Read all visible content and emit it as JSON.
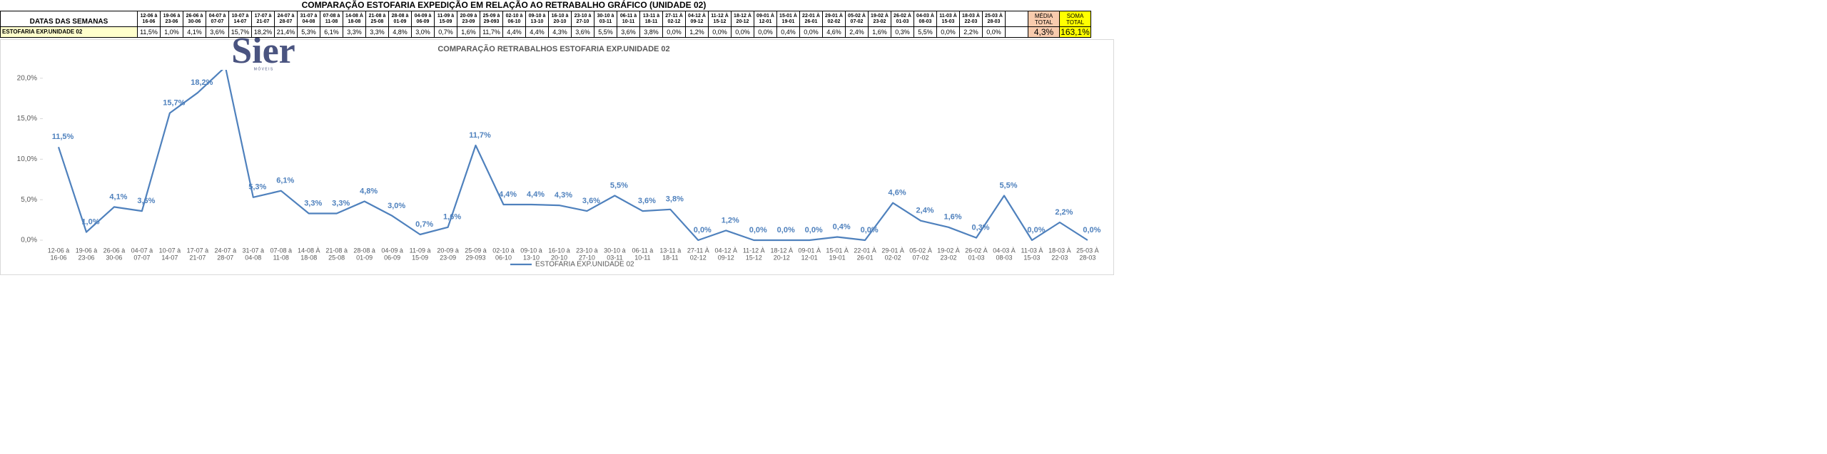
{
  "table": {
    "title": "COMPARAÇÃO ESTOFARIA EXPEDIÇÃO  EM RELAÇÃO AO RETRABALHO GRÁFICO (UNIDADE 02)",
    "row_header": "DATAS DAS SEMANAS",
    "summary": [
      {
        "label": "MÉDIA TOTAL",
        "value": "4,3%",
        "color": "#f8cbad"
      },
      {
        "label": "SOMA TOTAL",
        "value": "163,1%",
        "color": "#ffff00"
      }
    ]
  },
  "logo": {
    "text": "Sier",
    "subtitle": "M Ó V E I S"
  },
  "chart_data": {
    "type": "line",
    "title": "COMPARAÇÃO RETRABALHOS  ESTOFARIA EXP.UNIDADE 02",
    "categories": [
      [
        "12-06 à",
        "16-06"
      ],
      [
        "19-06 à",
        "23-06"
      ],
      [
        "26-06 à",
        "30-06"
      ],
      [
        "04-07 à",
        "07-07"
      ],
      [
        "10-07 à",
        "14-07"
      ],
      [
        "17-07 à",
        "21-07"
      ],
      [
        "24-07 à",
        "28-07"
      ],
      [
        "31-07 à",
        "04-08"
      ],
      [
        "07-08 à",
        "11-08"
      ],
      [
        "14-08 À",
        "18-08"
      ],
      [
        "21-08 à",
        "25-08"
      ],
      [
        "28-08 à",
        "01-09"
      ],
      [
        "04-09 à",
        "06-09"
      ],
      [
        "11-09 à",
        "15-09"
      ],
      [
        "20-09 à",
        "23-09"
      ],
      [
        "25-09 à",
        "29-093"
      ],
      [
        "02-10 à",
        "06-10"
      ],
      [
        "09-10 à",
        "13-10"
      ],
      [
        "16-10 à",
        "20-10"
      ],
      [
        "23-10 à",
        "27-10"
      ],
      [
        "30-10 à",
        "03-11"
      ],
      [
        "06-11 à",
        "10-11"
      ],
      [
        "13-11 à",
        "18-11"
      ],
      [
        "27-11 À",
        "02-12"
      ],
      [
        "04-12 À",
        "09-12"
      ],
      [
        "11-12 À",
        "15-12"
      ],
      [
        "18-12 À",
        "20-12"
      ],
      [
        "09-01 À",
        "12-01"
      ],
      [
        "15-01 À",
        "19-01"
      ],
      [
        "22-01 À",
        "26-01"
      ],
      [
        "29-01 À",
        "02-02"
      ],
      [
        "05-02 À",
        "07-02"
      ],
      [
        "19-02 À",
        "23-02"
      ],
      [
        "26-02 À",
        "01-03"
      ],
      [
        "04-03 À",
        "08-03"
      ],
      [
        "11-03 À",
        "15-03"
      ],
      [
        "18-03 À",
        "22-03"
      ],
      [
        "25-03 À",
        "28-03"
      ]
    ],
    "series": [
      {
        "name": "ESTOFARIA EXP.UNIDADE 02",
        "color": "#4f81bd",
        "values": [
          11.5,
          1.0,
          4.1,
          3.6,
          15.7,
          18.2,
          21.4,
          5.3,
          6.1,
          3.3,
          3.3,
          4.8,
          3.0,
          0.7,
          1.6,
          11.7,
          4.4,
          4.4,
          4.3,
          3.6,
          5.5,
          3.6,
          3.8,
          0.0,
          1.2,
          0.0,
          0.0,
          0.0,
          0.4,
          0.0,
          4.6,
          2.4,
          1.6,
          0.3,
          5.5,
          0.0,
          2.2,
          0.0
        ],
        "value_labels": [
          "11,5%",
          "1,0%",
          "4,1%",
          "3,6%",
          "15,7%",
          "18,2%",
          "21,4%",
          "5,3%",
          "6,1%",
          "3,3%",
          "3,3%",
          "4,8%",
          "3,0%",
          "0,7%",
          "1,6%",
          "11,7%",
          "4,4%",
          "4,4%",
          "4,3%",
          "3,6%",
          "5,5%",
          "3,6%",
          "3,8%",
          "0,0%",
          "1,2%",
          "0,0%",
          "0,0%",
          "0,0%",
          "0,4%",
          "0,0%",
          "4,6%",
          "2,4%",
          "1,6%",
          "0,3%",
          "5,5%",
          "0,0%",
          "2,2%",
          "0,0%"
        ]
      }
    ],
    "ylim": [
      0,
      22
    ],
    "yticks": [
      {
        "value": 0,
        "label": "0,0%"
      },
      {
        "value": 5,
        "label": "5,0%"
      },
      {
        "value": 10,
        "label": "10,0%"
      },
      {
        "value": 15,
        "label": "15,0%"
      },
      {
        "value": 20,
        "label": "20,0%"
      }
    ],
    "legend": "bottom"
  }
}
